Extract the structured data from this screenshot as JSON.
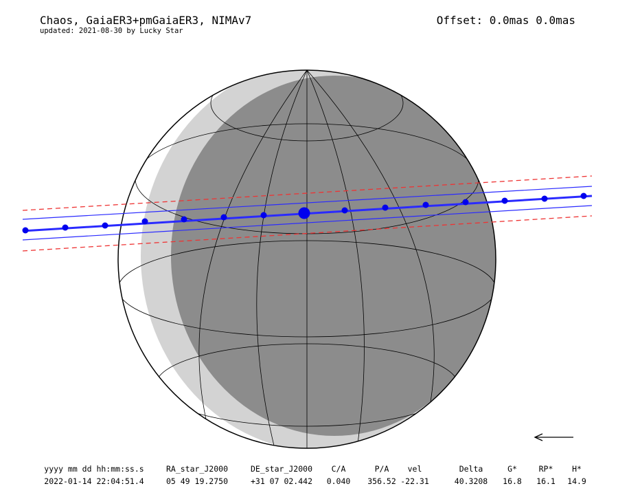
{
  "header": {
    "title": "Chaos, GaiaER3+pmGaiaER3, NIMAv7",
    "subtitle": "updated: 2021-08-30 by Lucky Star",
    "offset": "Offset: 0.0mas 0.0mas"
  },
  "table": {
    "headers": [
      "yyyy mm dd hh:mm:ss.s",
      "RA_star_J2000",
      "DE_star_J2000",
      "C/A",
      "P/A",
      "vel",
      "Delta",
      "G*",
      "RP*",
      "H*"
    ],
    "rows": [
      [
        "2022-01-14 22:04:51.4",
        "05 49 19.2750",
        "+31 07 02.442",
        "0.040",
        "356.52",
        "-22.31",
        "40.3208",
        "16.8",
        "16.1",
        "14.9"
      ]
    ]
  }
}
